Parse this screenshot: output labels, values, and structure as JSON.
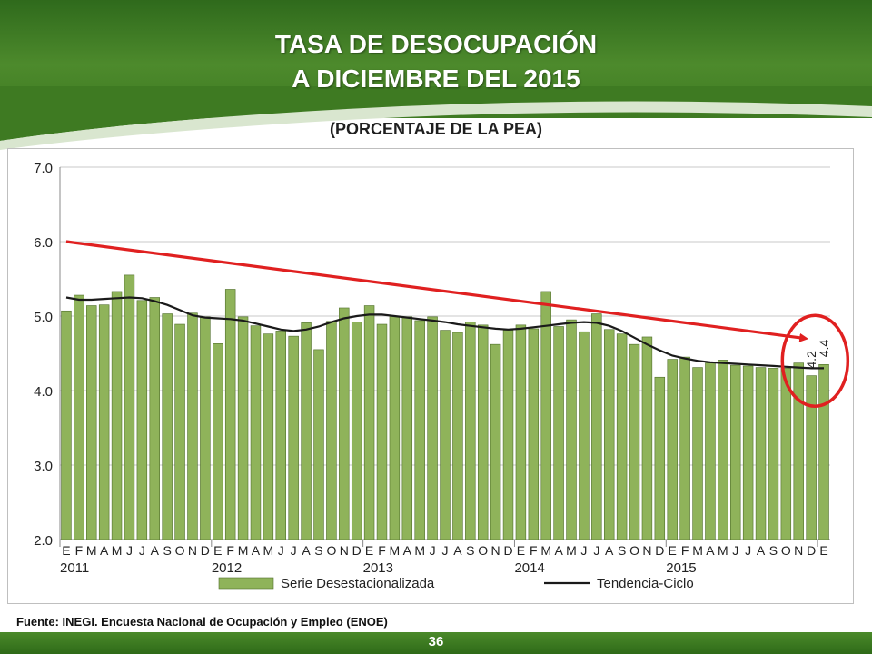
{
  "header": {
    "title_line1": "TASA DE DESOCUPACIÓN",
    "title_line2": "A DICIEMBRE DEL 2015",
    "subtitle": "(PORCENTAJE DE LA PEA)"
  },
  "footer": {
    "source": "Fuente: INEGI. Encuesta Nacional de Ocupación y Empleo (ENOE)",
    "page_number": "36"
  },
  "colors": {
    "bar": "#8fb35a",
    "bar_border": "#4f6e2a",
    "trend": "#1a1a1a",
    "arrow": "#e02020",
    "circle": "#e02020"
  },
  "chart_data": {
    "type": "bar",
    "ylim": [
      2.0,
      7.0
    ],
    "yticks": [
      "2.0",
      "3.0",
      "4.0",
      "5.0",
      "6.0",
      "7.0"
    ],
    "month_labels": [
      "E",
      "F",
      "M",
      "A",
      "M",
      "J",
      "J",
      "A",
      "S",
      "O",
      "N",
      "D"
    ],
    "years": [
      "2011",
      "2012",
      "2013",
      "2014",
      "2015"
    ],
    "series": [
      {
        "name": "Serie Desestacionalizada",
        "type": "bar",
        "values": [
          5.07,
          5.28,
          5.14,
          5.15,
          5.33,
          5.55,
          5.21,
          5.25,
          5.03,
          4.89,
          5.04,
          4.99,
          4.63,
          5.36,
          4.99,
          4.87,
          4.76,
          4.8,
          4.73,
          4.91,
          4.55,
          4.93,
          5.11,
          4.92,
          5.14,
          4.89,
          5.0,
          4.99,
          4.94,
          4.99,
          4.81,
          4.78,
          4.92,
          4.88,
          4.62,
          4.81,
          4.88,
          4.83,
          5.33,
          4.86,
          4.95,
          4.79,
          5.03,
          4.82,
          4.76,
          4.62,
          4.72,
          4.18,
          4.42,
          4.45,
          4.31,
          4.37,
          4.41,
          4.34,
          4.33,
          4.31,
          4.3,
          4.3,
          4.37,
          4.2,
          4.35
        ]
      },
      {
        "name": "Tendencia-Ciclo",
        "type": "line",
        "values": [
          5.25,
          5.22,
          5.22,
          5.23,
          5.24,
          5.25,
          5.24,
          5.2,
          5.15,
          5.08,
          5.01,
          4.98,
          4.97,
          4.96,
          4.94,
          4.9,
          4.86,
          4.82,
          4.8,
          4.82,
          4.86,
          4.92,
          4.97,
          5.0,
          5.02,
          5.02,
          5.0,
          4.98,
          4.96,
          4.94,
          4.92,
          4.89,
          4.87,
          4.85,
          4.83,
          4.82,
          4.83,
          4.85,
          4.87,
          4.89,
          4.91,
          4.92,
          4.91,
          4.87,
          4.8,
          4.71,
          4.62,
          4.54,
          4.47,
          4.43,
          4.4,
          4.38,
          4.37,
          4.36,
          4.35,
          4.34,
          4.33,
          4.32,
          4.31,
          4.3,
          4.3
        ]
      }
    ],
    "annotations": {
      "arrow_from": [
        0,
        6.0
      ],
      "arrow_to": [
        58.5,
        4.7
      ],
      "value_labels": [
        {
          "index": 59,
          "text": "4.2"
        },
        {
          "index": 60,
          "text": "4.4"
        }
      ],
      "circle_center_index": 59.3,
      "circle_center_value": 4.4
    },
    "legend": {
      "placement": "bottom",
      "bar_label": "Serie Desestacionalizada",
      "line_label": "Tendencia-Ciclo"
    }
  }
}
